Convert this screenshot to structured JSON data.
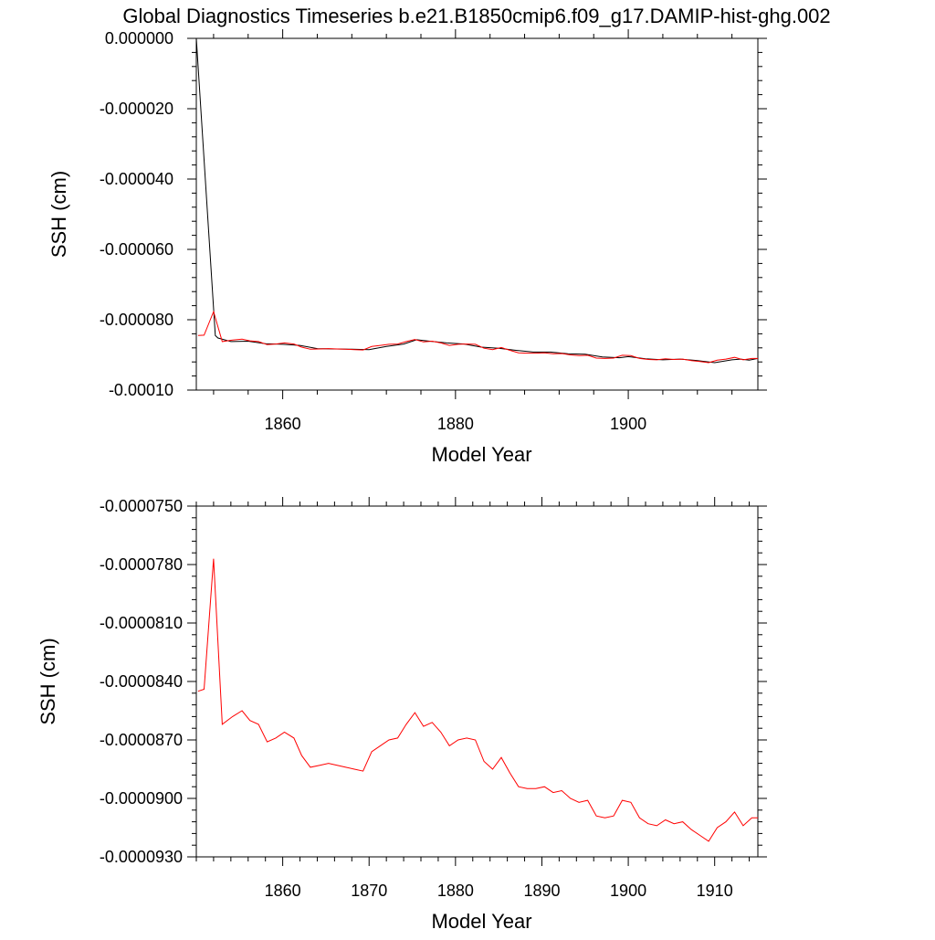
{
  "title": "Global Diagnostics Timeseries b.e21.B1850cmip6.f09_g17.DAMIP-hist-ghg.002",
  "chart_data": [
    {
      "type": "line",
      "xlabel": "Model Year",
      "ylabel": "SSH (cm)",
      "xlim": [
        1850,
        1915
      ],
      "ylim": [
        -0.0001,
        0.0
      ],
      "xticks": [
        1860,
        1880,
        1900
      ],
      "xtick_labels": [
        "1860",
        "1880",
        "1900"
      ],
      "yticks": [
        0.0,
        -2e-05,
        -4e-05,
        -6e-05,
        -8e-05,
        -0.0001
      ],
      "ytick_labels": [
        "0.000000",
        "-0.000020",
        "-0.000040",
        "-0.000060",
        "-0.000080",
        "-0.00010"
      ],
      "series": [
        {
          "color": "#000000",
          "x": [
            1850.0,
            1852.2,
            1852.5,
            1854,
            1856,
            1858,
            1860,
            1862,
            1864,
            1866,
            1868,
            1870,
            1872,
            1874,
            1875.5,
            1877,
            1879,
            1881,
            1883,
            1885,
            1887,
            1889,
            1891,
            1893,
            1895,
            1897,
            1899,
            1900,
            1902,
            1904,
            1906,
            1908,
            1910,
            1912,
            1913,
            1914,
            1915
          ],
          "values": [
            0.0,
            -8.45e-05,
            -8.52e-05,
            -8.62e-05,
            -8.61e-05,
            -8.68e-05,
            -8.7e-05,
            -8.73e-05,
            -8.82e-05,
            -8.83e-05,
            -8.84e-05,
            -8.85e-05,
            -8.76e-05,
            -8.69e-05,
            -8.57e-05,
            -8.61e-05,
            -8.66e-05,
            -8.69e-05,
            -8.78e-05,
            -8.81e-05,
            -8.87e-05,
            -8.92e-05,
            -8.92e-05,
            -8.97e-05,
            -8.98e-05,
            -9.06e-05,
            -9.08e-05,
            -9.05e-05,
            -9.11e-05,
            -9.14e-05,
            -9.12e-05,
            -9.16e-05,
            -9.22e-05,
            -9.14e-05,
            -9.12e-05,
            -9.15e-05,
            -9.1e-05
          ]
        },
        {
          "color": "#ff0000",
          "x": [
            1850.2,
            1850.9,
            1852.0,
            1853.0,
            1854.2,
            1855.3,
            1856.2,
            1857.2,
            1858.2,
            1859.2,
            1860.2,
            1861.3,
            1862.2,
            1863.2,
            1864.3,
            1865.3,
            1866.3,
            1867.3,
            1868.3,
            1869.3,
            1870.3,
            1871.3,
            1872.3,
            1873.3,
            1874.3,
            1875.3,
            1876.3,
            1877.3,
            1878.3,
            1879.3,
            1880.3,
            1881.3,
            1882.3,
            1883.3,
            1884.3,
            1885.3,
            1886.3,
            1887.3,
            1888.3,
            1889.3,
            1890.3,
            1891.3,
            1892.3,
            1893.3,
            1894.3,
            1895.3,
            1896.3,
            1897.3,
            1898.3,
            1899.3,
            1900.3,
            1901.3,
            1902.3,
            1903.3,
            1904.3,
            1905.3,
            1906.3,
            1907.3,
            1908.3,
            1909.3,
            1910.3,
            1911.3,
            1912.3,
            1913.3,
            1914.3,
            1915.0
          ],
          "values": [
            -8.45e-05,
            -8.44e-05,
            -7.77e-05,
            -8.62e-05,
            -8.58e-05,
            -8.55e-05,
            -8.6e-05,
            -8.62e-05,
            -8.71e-05,
            -8.69e-05,
            -8.66e-05,
            -8.69e-05,
            -8.78e-05,
            -8.84e-05,
            -8.83e-05,
            -8.82e-05,
            -8.83e-05,
            -8.84e-05,
            -8.85e-05,
            -8.86e-05,
            -8.76e-05,
            -8.73e-05,
            -8.7e-05,
            -8.69e-05,
            -8.62e-05,
            -8.56e-05,
            -8.63e-05,
            -8.61e-05,
            -8.66e-05,
            -8.73e-05,
            -8.7e-05,
            -8.69e-05,
            -8.7e-05,
            -8.81e-05,
            -8.85e-05,
            -8.79e-05,
            -8.87e-05,
            -8.94e-05,
            -8.95e-05,
            -8.95e-05,
            -8.94e-05,
            -8.97e-05,
            -8.96e-05,
            -9e-05,
            -9.02e-05,
            -9.01e-05,
            -9.09e-05,
            -9.1e-05,
            -9.09e-05,
            -9.01e-05,
            -9.02e-05,
            -9.1e-05,
            -9.13e-05,
            -9.14e-05,
            -9.11e-05,
            -9.13e-05,
            -9.12e-05,
            -9.16e-05,
            -9.19e-05,
            -9.22e-05,
            -9.15e-05,
            -9.12e-05,
            -9.07e-05,
            -9.14e-05,
            -9.1e-05,
            -9.1e-05
          ]
        }
      ]
    },
    {
      "type": "line",
      "xlabel": "Model Year",
      "ylabel": "SSH (cm)",
      "xlim": [
        1850,
        1915
      ],
      "ylim": [
        -9.3e-05,
        -7.5e-05
      ],
      "xticks": [
        1860,
        1870,
        1880,
        1890,
        1900,
        1910
      ],
      "xtick_labels": [
        "1860",
        "1870",
        "1880",
        "1890",
        "1900",
        "1910"
      ],
      "yticks": [
        -7.5e-05,
        -7.8e-05,
        -8.1e-05,
        -8.4e-05,
        -8.7e-05,
        -9e-05,
        -9.3e-05
      ],
      "ytick_labels": [
        "-0.0000750",
        "-0.0000780",
        "-0.0000810",
        "-0.0000840",
        "-0.0000870",
        "-0.0000900",
        "-0.0000930"
      ],
      "series": [
        {
          "color": "#ff0000",
          "x": [
            1850.2,
            1850.9,
            1852.0,
            1853.0,
            1854.2,
            1855.3,
            1856.2,
            1857.2,
            1858.2,
            1859.2,
            1860.2,
            1861.3,
            1862.2,
            1863.2,
            1864.3,
            1865.3,
            1866.3,
            1867.3,
            1868.3,
            1869.3,
            1870.3,
            1871.3,
            1872.3,
            1873.3,
            1874.3,
            1875.3,
            1876.3,
            1877.3,
            1878.3,
            1879.3,
            1880.3,
            1881.3,
            1882.3,
            1883.3,
            1884.3,
            1885.3,
            1886.3,
            1887.3,
            1888.3,
            1889.3,
            1890.3,
            1891.3,
            1892.3,
            1893.3,
            1894.3,
            1895.3,
            1896.3,
            1897.3,
            1898.3,
            1899.3,
            1900.3,
            1901.3,
            1902.3,
            1903.3,
            1904.3,
            1905.3,
            1906.3,
            1907.3,
            1908.3,
            1909.3,
            1910.3,
            1911.3,
            1912.3,
            1913.3,
            1914.3,
            1915.0
          ],
          "values": [
            -8.45e-05,
            -8.44e-05,
            -7.77e-05,
            -8.62e-05,
            -8.58e-05,
            -8.55e-05,
            -8.6e-05,
            -8.62e-05,
            -8.71e-05,
            -8.69e-05,
            -8.66e-05,
            -8.69e-05,
            -8.78e-05,
            -8.84e-05,
            -8.83e-05,
            -8.82e-05,
            -8.83e-05,
            -8.84e-05,
            -8.85e-05,
            -8.86e-05,
            -8.76e-05,
            -8.73e-05,
            -8.7e-05,
            -8.69e-05,
            -8.62e-05,
            -8.56e-05,
            -8.63e-05,
            -8.61e-05,
            -8.66e-05,
            -8.73e-05,
            -8.7e-05,
            -8.69e-05,
            -8.7e-05,
            -8.81e-05,
            -8.85e-05,
            -8.79e-05,
            -8.87e-05,
            -8.94e-05,
            -8.95e-05,
            -8.95e-05,
            -8.94e-05,
            -8.97e-05,
            -8.96e-05,
            -9e-05,
            -9.02e-05,
            -9.01e-05,
            -9.09e-05,
            -9.1e-05,
            -9.09e-05,
            -9.01e-05,
            -9.02e-05,
            -9.1e-05,
            -9.13e-05,
            -9.14e-05,
            -9.11e-05,
            -9.13e-05,
            -9.12e-05,
            -9.16e-05,
            -9.19e-05,
            -9.22e-05,
            -9.15e-05,
            -9.12e-05,
            -9.07e-05,
            -9.14e-05,
            -9.1e-05,
            -9.1e-05
          ]
        }
      ]
    }
  ]
}
